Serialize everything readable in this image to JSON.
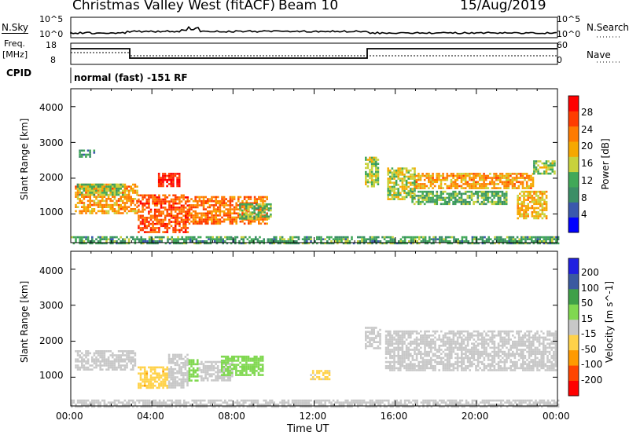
{
  "header": {
    "title": "Christmas Valley West (fitACF)",
    "beam": "Beam 10",
    "date": "15/Aug/2019",
    "cpid_label": "CPID",
    "cpid_value": "normal (fast) -151 RF"
  },
  "panels": {
    "noise": {
      "left_label": "N.Sky",
      "right_label": "N.Search",
      "ticks": [
        "10^5",
        "10^0"
      ],
      "right_ticks": [
        "10^5",
        "10^0"
      ],
      "scale": "log"
    },
    "freq": {
      "left_label_1": "Freq.",
      "left_label_2": "[MHz]",
      "ticks": [
        "18",
        "8"
      ],
      "right_label": "Nave",
      "right_ticks": [
        "60",
        "0"
      ]
    }
  },
  "colors": {
    "power_scale": [
      "#0000ff",
      "#3a58ad",
      "#3b8e66",
      "#41a858",
      "#c8d23c",
      "#f6a800",
      "#ff7b00",
      "#ff3c00",
      "#ff0000"
    ],
    "velocity_scale": [
      "#ff0000",
      "#ff4500",
      "#ff9a00",
      "#ffd24a",
      "#c8c8c8",
      "#80d850",
      "#3fa048",
      "#3a5aa0",
      "#2020e0"
    ]
  },
  "chart_data": [
    {
      "type": "heatmap",
      "title": "",
      "xlabel": "Time UT",
      "ylabel": "Slant Range [km]",
      "x_ticks": [
        "00:00",
        "04:00",
        "08:00",
        "12:00",
        "16:00",
        "20:00",
        "00:00"
      ],
      "xlim_hours": [
        0,
        24
      ],
      "y_ticks": [
        1000,
        2000,
        3000,
        4000
      ],
      "ylim": [
        200,
        4500
      ],
      "colorbar": {
        "label": "Power [dB]",
        "ticks": [
          4,
          8,
          12,
          16,
          20,
          24,
          28
        ],
        "range": [
          0,
          32
        ]
      },
      "regions": [
        {
          "t": [
            0.2,
            3.3
          ],
          "range": [
            1000,
            1850
          ],
          "value": 21
        },
        {
          "t": [
            0.3,
            2.6
          ],
          "range": [
            1550,
            1850
          ],
          "value": 14
        },
        {
          "t": [
            0.4,
            1.2
          ],
          "range": [
            2600,
            2800
          ],
          "value": 10
        },
        {
          "t": [
            3.3,
            5.8
          ],
          "range": [
            500,
            1550
          ],
          "value": 26
        },
        {
          "t": [
            4.3,
            5.4
          ],
          "range": [
            1800,
            2150
          ],
          "value": 29
        },
        {
          "t": [
            5.8,
            9.7
          ],
          "range": [
            750,
            1500
          ],
          "value": 24
        },
        {
          "t": [
            8.3,
            9.9
          ],
          "range": [
            900,
            1300
          ],
          "value": 13
        },
        {
          "t": [
            14.5,
            15.2
          ],
          "range": [
            1800,
            2600
          ],
          "value": 15
        },
        {
          "t": [
            15.6,
            17.0
          ],
          "range": [
            1400,
            2300
          ],
          "value": 16
        },
        {
          "t": [
            17.0,
            22.8
          ],
          "range": [
            1700,
            2150
          ],
          "value": 21
        },
        {
          "t": [
            16.8,
            21.5
          ],
          "range": [
            1300,
            1650
          ],
          "value": 12
        },
        {
          "t": [
            22.0,
            23.5
          ],
          "range": [
            900,
            1650
          ],
          "value": 19
        },
        {
          "t": [
            22.8,
            23.9
          ],
          "range": [
            2150,
            2500
          ],
          "value": 15
        },
        {
          "t": [
            0.0,
            24.0
          ],
          "range": [
            200,
            380
          ],
          "value": 11
        }
      ]
    },
    {
      "type": "heatmap",
      "title": "",
      "xlabel": "Time UT",
      "ylabel": "Slant Range [km]",
      "x_ticks": [
        "00:00",
        "04:00",
        "08:00",
        "12:00",
        "16:00",
        "20:00",
        "00:00"
      ],
      "xlim_hours": [
        0,
        24
      ],
      "y_ticks": [
        1000,
        2000,
        3000,
        4000
      ],
      "ylim": [
        200,
        4500
      ],
      "colorbar": {
        "label": "Velocity [m s^-1]",
        "ticks": [
          -200,
          -100,
          -50,
          -15,
          15,
          50,
          100,
          200
        ],
        "range": [
          -250,
          250
        ]
      },
      "regions": [
        {
          "t": [
            0.2,
            3.2
          ],
          "range": [
            1200,
            1750
          ],
          "value": 0
        },
        {
          "t": [
            3.3,
            4.8
          ],
          "range": [
            700,
            1300
          ],
          "value": -70
        },
        {
          "t": [
            4.8,
            5.8
          ],
          "range": [
            700,
            1650
          ],
          "value": 0
        },
        {
          "t": [
            5.8,
            6.3
          ],
          "range": [
            900,
            1500
          ],
          "value": 60
        },
        {
          "t": [
            6.3,
            8.0
          ],
          "range": [
            900,
            1450
          ],
          "value": 0
        },
        {
          "t": [
            7.4,
            9.5
          ],
          "range": [
            1050,
            1600
          ],
          "value": 45
        },
        {
          "t": [
            11.8,
            12.8
          ],
          "range": [
            950,
            1200
          ],
          "value": -40
        },
        {
          "t": [
            14.5,
            15.3
          ],
          "range": [
            1800,
            2400
          ],
          "value": 0
        },
        {
          "t": [
            15.5,
            23.9
          ],
          "range": [
            1200,
            2300
          ],
          "value": 0
        },
        {
          "t": [
            0.0,
            24.0
          ],
          "range": [
            200,
            380
          ],
          "value": -10
        }
      ]
    }
  ]
}
